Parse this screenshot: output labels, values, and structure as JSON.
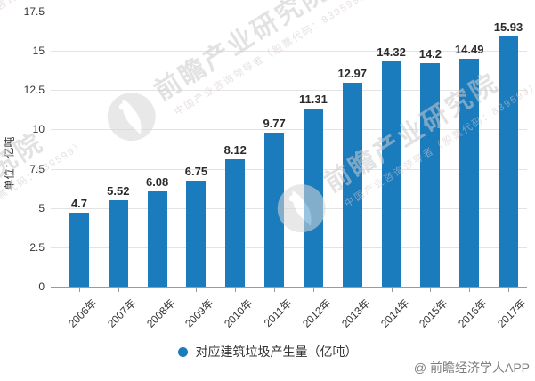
{
  "chart_data": {
    "type": "bar",
    "categories": [
      "2006年",
      "2007年",
      "2008年",
      "2009年",
      "2010年",
      "2011年",
      "2012年",
      "2013年",
      "2014年",
      "2015年",
      "2016年",
      "2017年"
    ],
    "values": [
      4.7,
      5.52,
      6.08,
      6.75,
      8.12,
      9.77,
      11.31,
      12.97,
      14.32,
      14.2,
      14.49,
      15.93
    ],
    "series_name": "对应建筑垃圾产生量（亿吨）",
    "title": "",
    "xlabel": "",
    "ylabel": "单位：亿吨",
    "ylim": [
      0,
      17.5
    ],
    "ytick_values": [
      0,
      2.5,
      5,
      7.5,
      10,
      12.5,
      15,
      17.5
    ],
    "ytick_labels": [
      "0",
      "2.5",
      "5",
      "7.5",
      "10",
      "12.5",
      "15",
      "17.5"
    ],
    "grid": true,
    "legend_position": "bottom",
    "bar_color": "#1a7bbd",
    "value_labels_shown": true
  },
  "legend": {
    "label": "对应建筑垃圾产生量（亿吨）",
    "marker_color": "#1a7bbd"
  },
  "y_axis_name": "单位：亿吨",
  "watermark": {
    "brand": "前瞻产业研究院",
    "subtitle": "中国产业咨询领导者（股票代码：839599）"
  },
  "credit": "@ 前瞻经济学人APP"
}
